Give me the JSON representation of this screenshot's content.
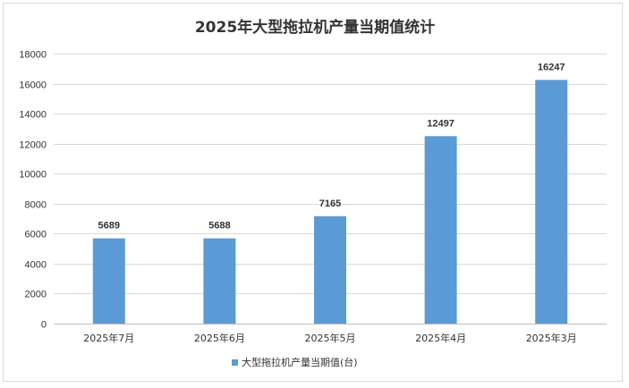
{
  "chart_data": {
    "type": "bar",
    "title": "2025年大型拖拉机产量当期值统计",
    "categories": [
      "2025年7月",
      "2025年6月",
      "2025年5月",
      "2025年4月",
      "2025年3月"
    ],
    "series": [
      {
        "name": "大型拖拉机产量当期值(台)",
        "values": [
          5689,
          5688,
          7165,
          12497,
          16247
        ],
        "color": "#5b9bd5"
      }
    ],
    "ylim": [
      0,
      18000
    ],
    "yticks": [
      0,
      2000,
      4000,
      6000,
      8000,
      10000,
      12000,
      14000,
      16000,
      18000
    ],
    "grid": true,
    "legend_position": "bottom",
    "data_labels": true
  }
}
